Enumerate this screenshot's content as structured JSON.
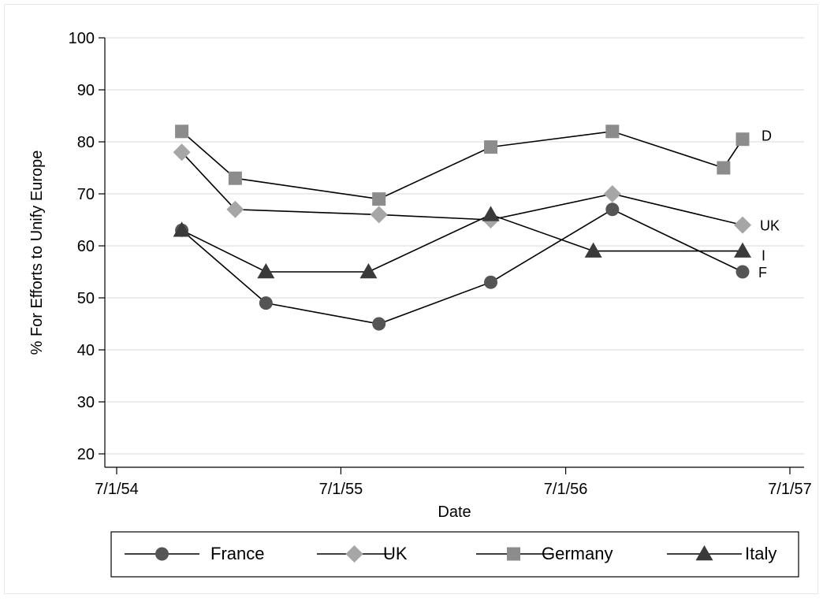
{
  "chart_data": {
    "type": "line",
    "xlabel": "Date",
    "ylabel": "% For Efforts to Unify Europe",
    "ylim": [
      20,
      100
    ],
    "yticks": [
      20,
      30,
      40,
      50,
      60,
      70,
      80,
      90,
      100
    ],
    "xlim": [
      "1954-07-01",
      "1957-07-01"
    ],
    "xticks": [
      {
        "date": "1954-07-01",
        "label": "7/1/54"
      },
      {
        "date": "1955-07-01",
        "label": "7/1/55"
      },
      {
        "date": "1956-07-01",
        "label": "7/1/56"
      },
      {
        "date": "1957-07-01",
        "label": "7/1/57"
      }
    ],
    "grid": true,
    "legend_position": "bottom",
    "series": [
      {
        "name": "France",
        "end_label": "F",
        "marker": "circle",
        "color": "#555555",
        "points": [
          {
            "x": "1954-10-15",
            "y": 63
          },
          {
            "x": "1955-03-01",
            "y": 49
          },
          {
            "x": "1955-09-01",
            "y": 45
          },
          {
            "x": "1956-03-01",
            "y": 53
          },
          {
            "x": "1956-09-15",
            "y": 67
          },
          {
            "x": "1957-04-15",
            "y": 55
          }
        ]
      },
      {
        "name": "UK",
        "end_label": "UK",
        "marker": "diamond",
        "color": "#a6a6a6",
        "points": [
          {
            "x": "1954-10-15",
            "y": 78
          },
          {
            "x": "1955-01-10",
            "y": 67
          },
          {
            "x": "1955-09-01",
            "y": 66
          },
          {
            "x": "1956-03-01",
            "y": 65
          },
          {
            "x": "1956-09-15",
            "y": 70
          },
          {
            "x": "1957-04-15",
            "y": 64
          }
        ]
      },
      {
        "name": "Germany",
        "end_label": "D",
        "marker": "square",
        "color": "#8c8c8c",
        "points": [
          {
            "x": "1954-10-15",
            "y": 82
          },
          {
            "x": "1955-01-10",
            "y": 73
          },
          {
            "x": "1955-09-01",
            "y": 69
          },
          {
            "x": "1956-03-01",
            "y": 79
          },
          {
            "x": "1956-09-15",
            "y": 82
          },
          {
            "x": "1957-03-15",
            "y": 75
          },
          {
            "x": "1957-04-15",
            "y": 80.5
          }
        ]
      },
      {
        "name": "Italy",
        "end_label": "I",
        "marker": "triangle",
        "color": "#3a3a3a",
        "points": [
          {
            "x": "1954-10-15",
            "y": 63
          },
          {
            "x": "1955-03-01",
            "y": 55
          },
          {
            "x": "1955-08-15",
            "y": 55
          },
          {
            "x": "1956-03-01",
            "y": 66
          },
          {
            "x": "1956-08-15",
            "y": 59
          },
          {
            "x": "1957-04-15",
            "y": 59
          }
        ]
      }
    ]
  }
}
